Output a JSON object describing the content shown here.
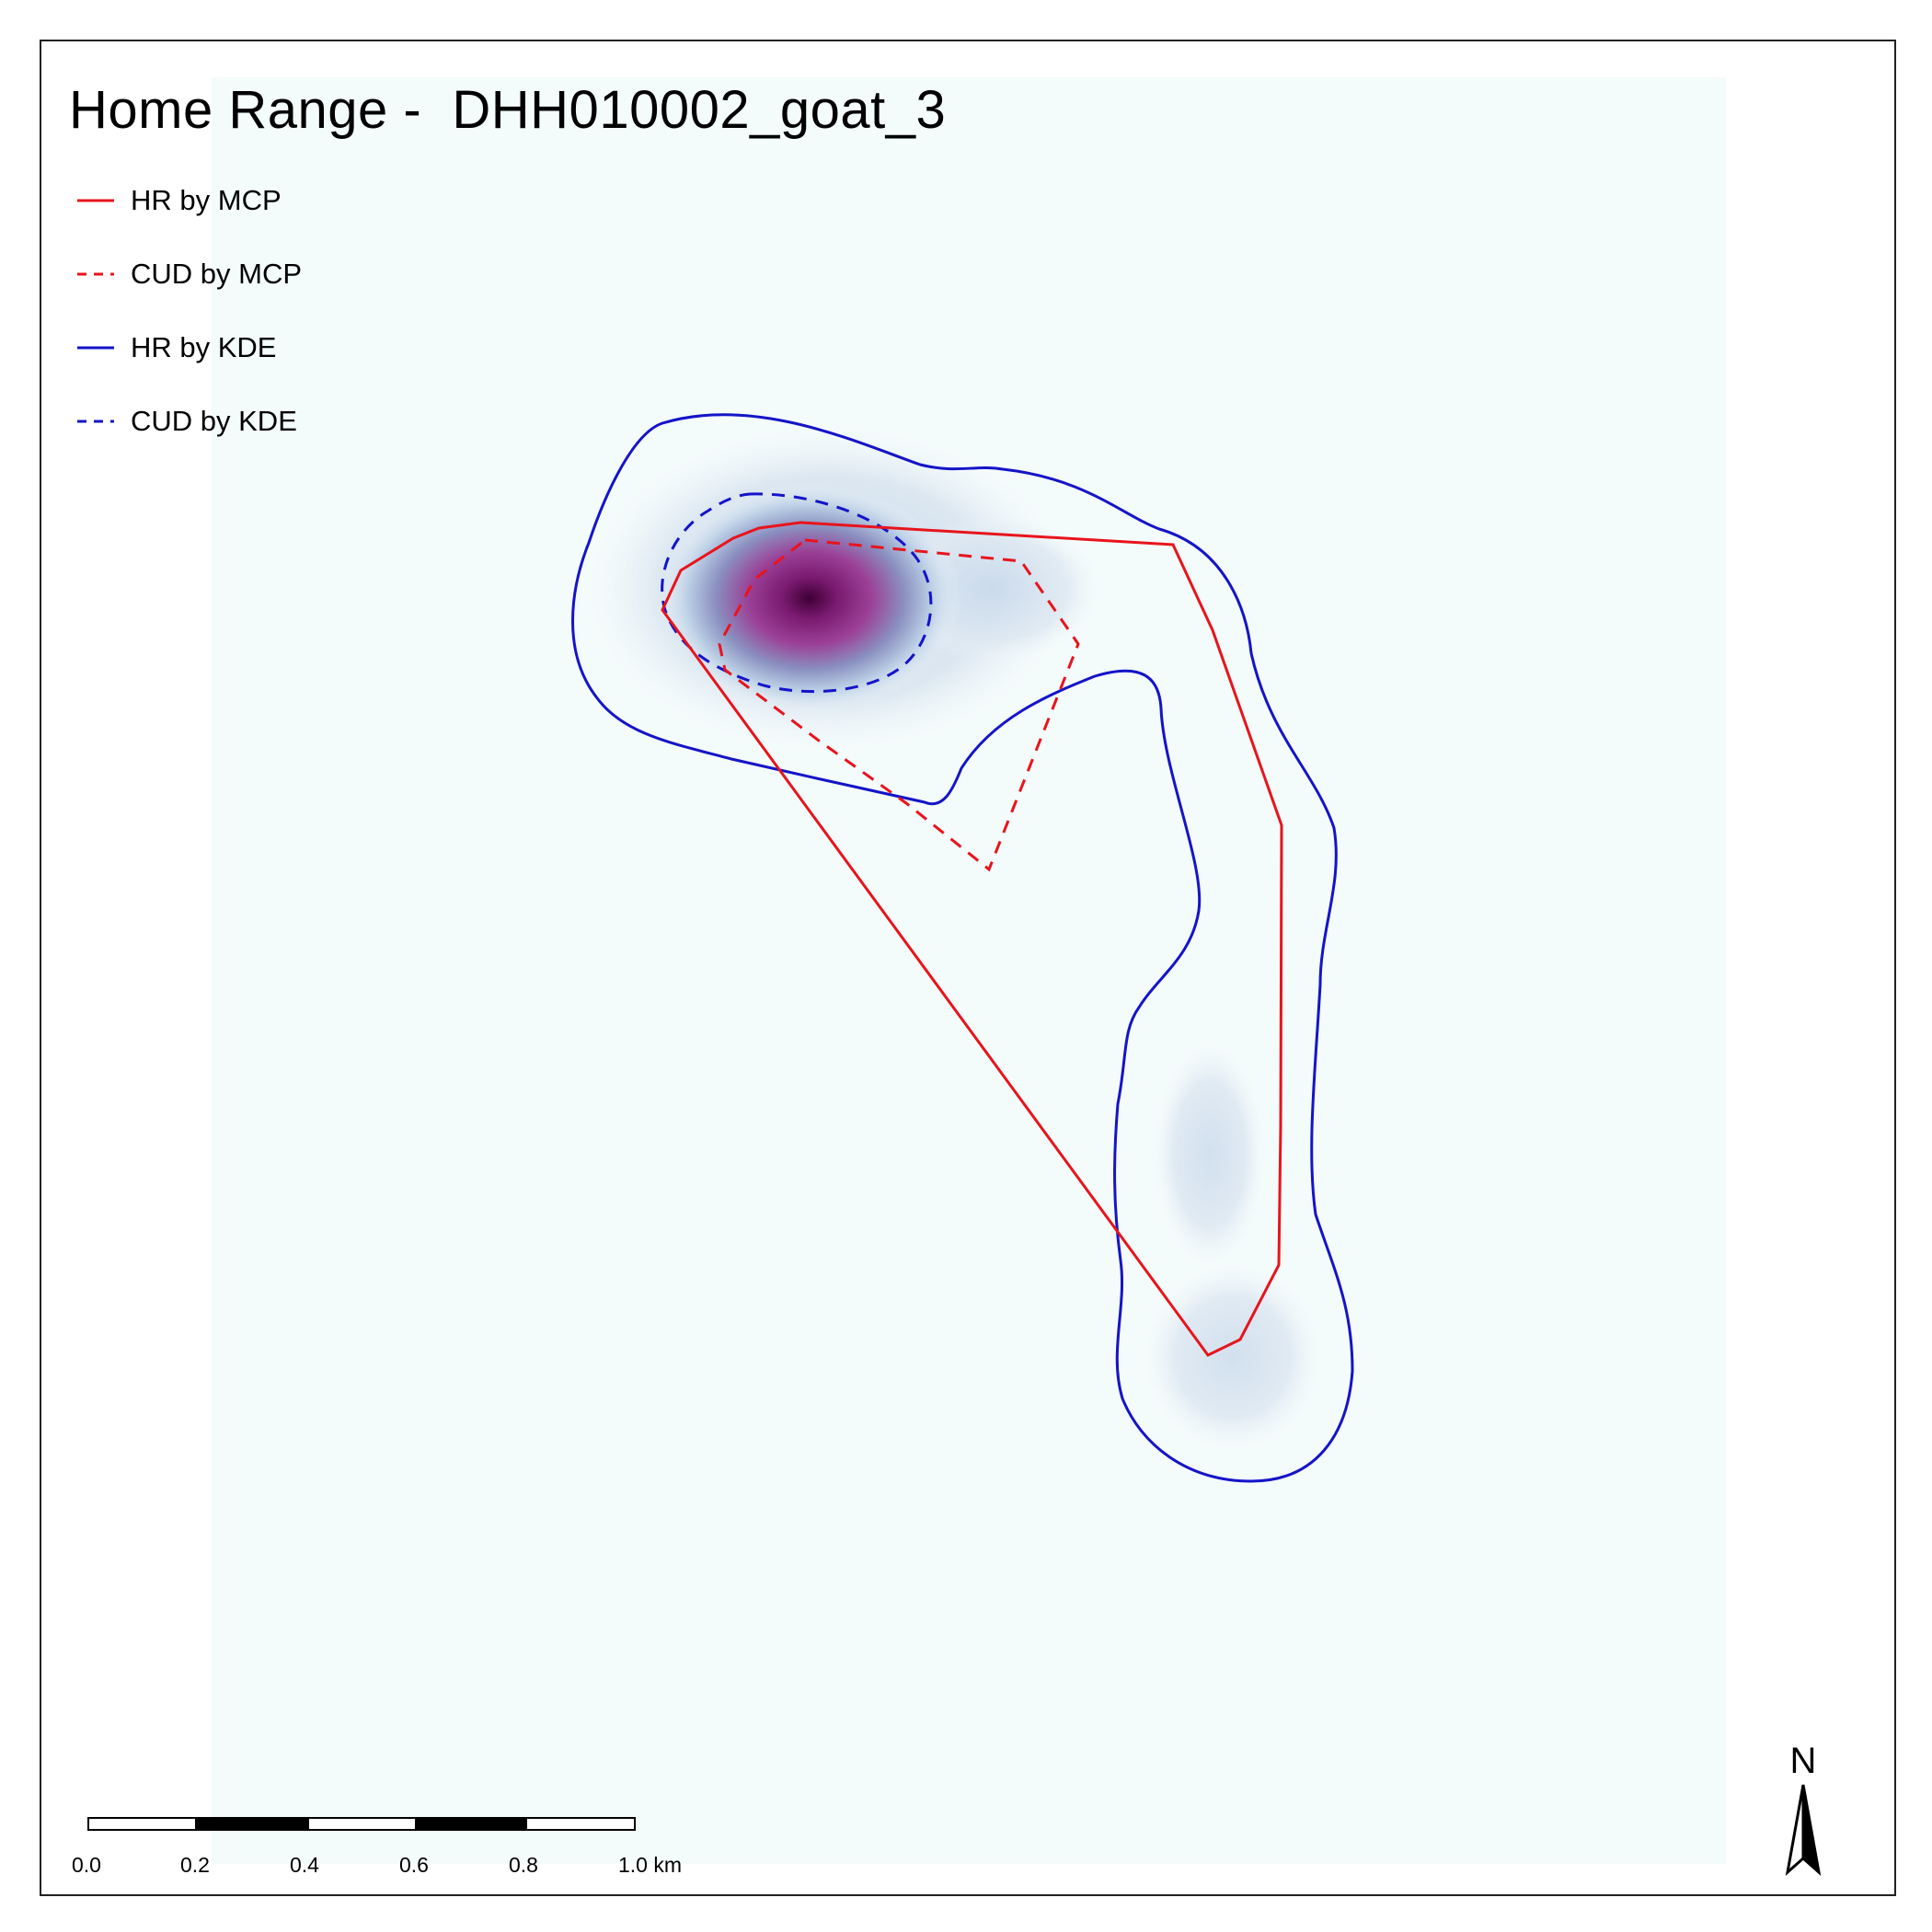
{
  "map": {
    "title": "Home Range -  DHH010002_goat_3",
    "legend": [
      {
        "label": "HR by MCP",
        "color": "#e8141c",
        "style": "solid"
      },
      {
        "label": "CUD by MCP",
        "color": "#e8141c",
        "style": "dashed"
      },
      {
        "label": "HR by KDE",
        "color": "#1414c8",
        "style": "solid"
      },
      {
        "label": "CUD by KDE",
        "color": "#1414c8",
        "style": "dashed"
      }
    ],
    "scale_bar": {
      "unit": "km",
      "ticks": [
        "0.0",
        "0.2",
        "0.4",
        "0.6",
        "0.8",
        "1.0 km"
      ]
    },
    "north_arrow": {
      "letter": "N"
    },
    "colors": {
      "mcp": "#e8141c",
      "kde": "#1414c8",
      "density_high": "#4a0040",
      "density_mid": "#9a2a8e",
      "density_low": "#c9dcec",
      "background_raster": "#f4fbfb"
    }
  }
}
